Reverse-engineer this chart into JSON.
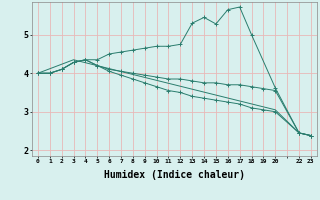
{
  "xlabel": "Humidex (Indice chaleur)",
  "bg_color": "#d8f0ee",
  "grid_color": "#e8b8b8",
  "line_color": "#2a7d6e",
  "xlim": [
    -0.5,
    23.5
  ],
  "ylim": [
    1.85,
    5.85
  ],
  "xtick_labels": [
    "0",
    "1",
    "2",
    "3",
    "4",
    "5",
    "6",
    "7",
    "8",
    "9",
    "10",
    "11",
    "12",
    "13",
    "14",
    "15",
    "16",
    "17",
    "18",
    "19",
    "20",
    "",
    "22",
    "23"
  ],
  "line1_x": [
    0,
    1,
    2,
    3,
    4,
    5,
    6,
    7,
    8,
    9,
    10,
    11,
    12,
    13,
    14,
    15,
    16,
    17,
    18,
    20,
    22,
    23
  ],
  "line1_y": [
    4.0,
    4.0,
    4.1,
    4.28,
    4.35,
    4.35,
    4.5,
    4.55,
    4.6,
    4.65,
    4.7,
    4.7,
    4.75,
    5.3,
    5.45,
    5.28,
    5.65,
    5.72,
    5.0,
    3.62,
    2.45,
    2.38
  ],
  "line2_x": [
    0,
    1,
    2,
    3,
    4,
    5,
    6,
    7,
    8,
    9,
    10,
    11,
    12,
    13,
    14,
    15,
    16,
    17,
    18,
    19,
    20,
    22,
    23
  ],
  "line2_y": [
    4.0,
    4.0,
    4.1,
    4.28,
    4.35,
    4.2,
    4.1,
    4.05,
    4.0,
    3.95,
    3.9,
    3.85,
    3.85,
    3.8,
    3.75,
    3.75,
    3.7,
    3.7,
    3.65,
    3.6,
    3.55,
    2.45,
    2.38
  ],
  "line3_x": [
    0,
    1,
    2,
    3,
    4,
    5,
    6,
    7,
    8,
    9,
    10,
    11,
    12,
    13,
    14,
    15,
    16,
    17,
    18,
    19,
    20,
    22,
    23
  ],
  "line3_y": [
    4.0,
    4.0,
    4.1,
    4.28,
    4.35,
    4.2,
    4.05,
    3.95,
    3.85,
    3.75,
    3.65,
    3.55,
    3.5,
    3.4,
    3.35,
    3.3,
    3.25,
    3.2,
    3.1,
    3.05,
    3.0,
    2.45,
    2.38
  ],
  "line4_x": [
    0,
    3,
    20,
    22,
    23
  ],
  "line4_y": [
    4.0,
    4.35,
    3.05,
    2.45,
    2.38
  ],
  "yticks": [
    2,
    3,
    4,
    5
  ],
  "xlabel_fontsize": 7
}
